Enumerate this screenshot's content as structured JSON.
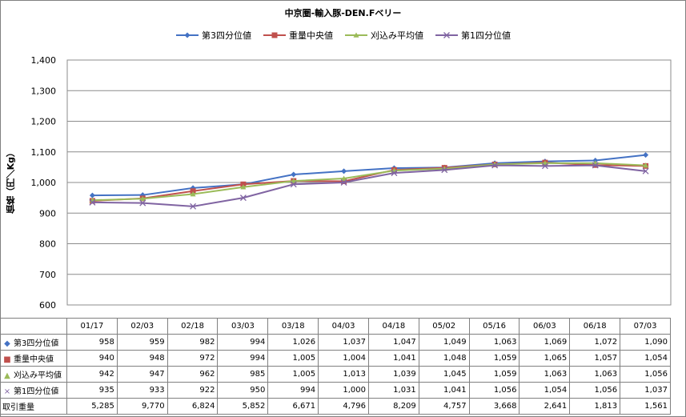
{
  "chart_data": {
    "type": "line",
    "title": "中京圏-輸入豚-DEN.Fベリー",
    "ylabel": "価格（円／Kg）",
    "xlabel": "",
    "ylim": [
      600,
      1400
    ],
    "ytick_step": 100,
    "grid": true,
    "legend_position": "top",
    "categories": [
      "01/17",
      "02/03",
      "02/18",
      "03/03",
      "03/18",
      "04/03",
      "04/18",
      "05/02",
      "05/16",
      "06/03",
      "06/18",
      "07/03"
    ],
    "series": [
      {
        "name": "第3四分位値",
        "color": "#4472c4",
        "marker": "diamond",
        "values": [
          958,
          959,
          982,
          994,
          1026,
          1037,
          1047,
          1049,
          1063,
          1069,
          1072,
          1090
        ]
      },
      {
        "name": "重量中央値",
        "color": "#c0504d",
        "marker": "square",
        "values": [
          940,
          948,
          972,
          994,
          1005,
          1004,
          1041,
          1048,
          1059,
          1065,
          1057,
          1054
        ]
      },
      {
        "name": "刈込み平均値",
        "color": "#9bbb59",
        "marker": "triangle",
        "values": [
          942,
          947,
          962,
          985,
          1005,
          1013,
          1039,
          1045,
          1059,
          1063,
          1063,
          1056
        ]
      },
      {
        "name": "第1四分位値",
        "color": "#8064a2",
        "marker": "x",
        "values": [
          935,
          933,
          922,
          950,
          994,
          1000,
          1031,
          1041,
          1056,
          1054,
          1056,
          1037
        ]
      }
    ],
    "table": {
      "volume_label": "取引重量",
      "series_rows": [
        [
          "958",
          "959",
          "982",
          "994",
          "1,026",
          "1,037",
          "1,047",
          "1,049",
          "1,063",
          "1,069",
          "1,072",
          "1,090"
        ],
        [
          "940",
          "948",
          "972",
          "994",
          "1,005",
          "1,004",
          "1,041",
          "1,048",
          "1,059",
          "1,065",
          "1,057",
          "1,054"
        ],
        [
          "942",
          "947",
          "962",
          "985",
          "1,005",
          "1,013",
          "1,039",
          "1,045",
          "1,059",
          "1,063",
          "1,063",
          "1,056"
        ],
        [
          "935",
          "933",
          "922",
          "950",
          "994",
          "1,000",
          "1,031",
          "1,041",
          "1,056",
          "1,054",
          "1,056",
          "1,037"
        ]
      ],
      "volume_values": [
        "5,285",
        "9,770",
        "6,824",
        "5,852",
        "6,671",
        "4,796",
        "8,209",
        "4,757",
        "3,668",
        "2,641",
        "1,813",
        "1,561"
      ]
    }
  }
}
